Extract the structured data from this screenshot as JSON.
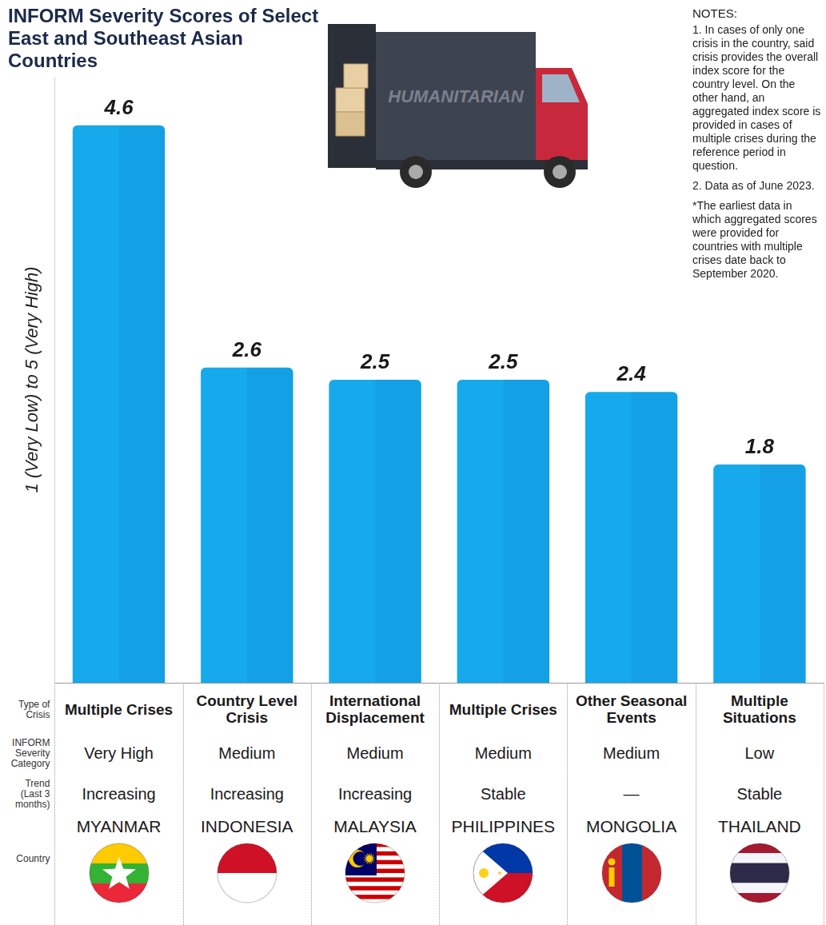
{
  "chart_data": {
    "type": "bar",
    "title": "INFORM Severity Scores of Select East and Southeast Asian Countries",
    "y_label": "1 (Very Low) to 5 (Very High)",
    "categories": [
      "MYANMAR",
      "INDONESIA",
      "MALAYSIA",
      "PHILIPPINES",
      "MONGOLIA",
      "THAILAND"
    ],
    "values": [
      4.6,
      2.6,
      2.5,
      2.5,
      2.4,
      1.8
    ],
    "color": "#16aaec",
    "ylim": [
      0,
      5
    ],
    "grid": false,
    "tick_labels": false,
    "data_labels": true
  },
  "table": {
    "row_labels": [
      "Type of Crisis",
      "INFORM Severity Category",
      "Trend (Last 3 months)",
      "Country"
    ],
    "rows": [
      [
        "Multiple Crises",
        "Country Level Crisis",
        "International Displacement",
        "Multiple Crises",
        "Other Seasonal Events",
        "Multiple Situations"
      ],
      [
        "Very High",
        "Medium",
        "Medium",
        "Medium",
        "Medium",
        "Low"
      ],
      [
        "Increasing",
        "Increasing",
        "Increasing",
        "Stable",
        "—",
        "Stable"
      ]
    ]
  },
  "notes": {
    "heading": "NOTES:",
    "items": [
      "1. In cases of only one crisis in the country, said crisis provides the overall index score for the country level. On the other hand, an aggregated index score is provided in cases of multiple crises during the reference period in question.",
      "2. Data as of June 2023.",
      "*The earliest data in which aggregated scores were provided for countries with multiple crises date back to September 2020."
    ]
  },
  "illustration": {
    "text": "HUMANITARIAN"
  }
}
